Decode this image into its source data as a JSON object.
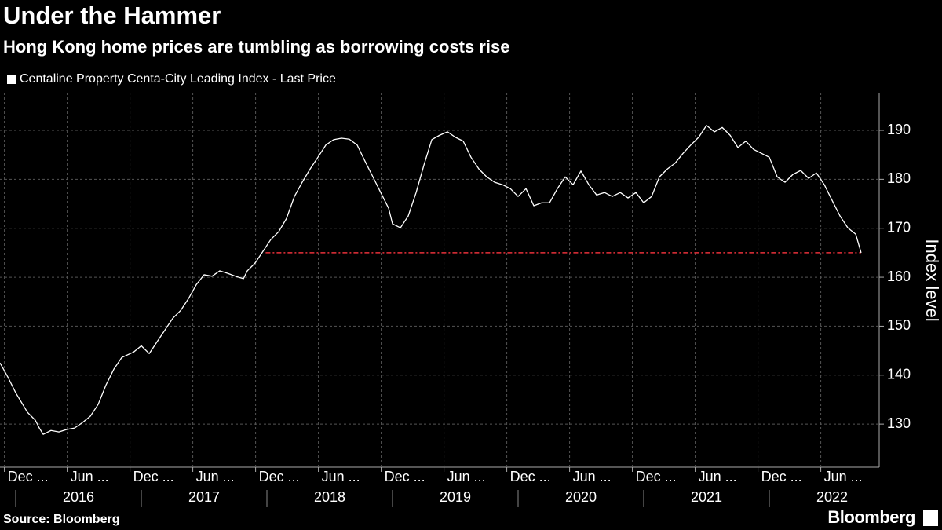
{
  "chart_data": {
    "type": "line",
    "title": "Under the Hammer",
    "subtitle": "Hong Kong home prices are tumbling as borrowing costs rise",
    "y_label": "Index level",
    "source": "Source: Bloomberg",
    "brand": "Bloomberg",
    "grid": true,
    "legend": "top-left",
    "xlim": [
      2015.875,
      2022.875
    ],
    "ylim": [
      121.2,
      197.7
    ],
    "yticks": [
      130,
      140,
      150,
      160,
      170,
      180,
      190
    ],
    "xticks": [
      {
        "value": 2015.91,
        "label": "Dec ..."
      },
      {
        "value": 2016.41,
        "label": "Jun ..."
      },
      {
        "value": 2016.91,
        "label": "Dec ..."
      },
      {
        "value": 2017.41,
        "label": "Jun ..."
      },
      {
        "value": 2017.91,
        "label": "Dec ..."
      },
      {
        "value": 2018.41,
        "label": "Jun ..."
      },
      {
        "value": 2018.91,
        "label": "Dec ..."
      },
      {
        "value": 2019.41,
        "label": "Jun ..."
      },
      {
        "value": 2019.91,
        "label": "Dec ..."
      },
      {
        "value": 2020.41,
        "label": "Jun ..."
      },
      {
        "value": 2020.91,
        "label": "Dec ..."
      },
      {
        "value": 2021.41,
        "label": "Jun ..."
      },
      {
        "value": 2021.91,
        "label": "Dec ..."
      },
      {
        "value": 2022.41,
        "label": "Jun ..."
      }
    ],
    "year_ticks": [
      2016,
      2017,
      2018,
      2019,
      2020,
      2021,
      2022
    ],
    "reference_line": {
      "y": 165,
      "x": [
        2017.99,
        2022.73
      ],
      "color": "#e8303a"
    },
    "series": [
      {
        "name": "Centaline Property Centa-City Leading Index - Last Price",
        "color": "#ffffff",
        "x": [
          2015.875,
          2015.938,
          2016.0,
          2016.094,
          2016.156,
          2016.188,
          2016.219,
          2016.281,
          2016.344,
          2016.406,
          2016.469,
          2016.531,
          2016.594,
          2016.656,
          2016.719,
          2016.781,
          2016.844,
          2016.938,
          2017.0,
          2017.063,
          2017.125,
          2017.188,
          2017.25,
          2017.313,
          2017.375,
          2017.438,
          2017.5,
          2017.563,
          2017.625,
          2017.688,
          2017.75,
          2017.813,
          2017.844,
          2017.906,
          2017.969,
          2018.031,
          2018.094,
          2018.156,
          2018.219,
          2018.281,
          2018.344,
          2018.406,
          2018.469,
          2018.531,
          2018.594,
          2018.656,
          2018.719,
          2018.781,
          2018.844,
          2018.906,
          2018.969,
          2019.0,
          2019.063,
          2019.125,
          2019.188,
          2019.25,
          2019.313,
          2019.375,
          2019.438,
          2019.5,
          2019.563,
          2019.625,
          2019.688,
          2019.75,
          2019.813,
          2019.875,
          2019.938,
          2020.0,
          2020.063,
          2020.125,
          2020.188,
          2020.25,
          2020.313,
          2020.375,
          2020.438,
          2020.5,
          2020.563,
          2020.625,
          2020.688,
          2020.75,
          2020.813,
          2020.875,
          2020.938,
          2021.0,
          2021.063,
          2021.125,
          2021.188,
          2021.25,
          2021.313,
          2021.375,
          2021.438,
          2021.5,
          2021.563,
          2021.625,
          2021.688,
          2021.75,
          2021.813,
          2021.875,
          2021.938,
          2022.0,
          2022.063,
          2022.125,
          2022.188,
          2022.25,
          2022.313,
          2022.375,
          2022.438,
          2022.5,
          2022.563,
          2022.625,
          2022.688,
          2022.731
        ],
        "values": [
          142.5,
          139.6,
          136.4,
          132.4,
          130.8,
          129.2,
          127.9,
          128.7,
          128.4,
          128.9,
          129.2,
          130.3,
          131.6,
          134.0,
          138.0,
          141.2,
          143.6,
          144.7,
          146.0,
          144.4,
          146.8,
          149.2,
          151.6,
          153.2,
          155.6,
          158.5,
          160.5,
          160.2,
          161.3,
          160.8,
          160.2,
          159.7,
          161.3,
          162.9,
          165.3,
          167.7,
          169.3,
          172.0,
          176.5,
          179.4,
          182.1,
          184.5,
          187.0,
          188.1,
          188.4,
          188.2,
          187.0,
          183.7,
          180.5,
          177.3,
          174.1,
          170.9,
          170.1,
          172.5,
          177.3,
          182.9,
          188.1,
          189.0,
          189.7,
          188.6,
          187.8,
          184.5,
          182.1,
          180.5,
          179.4,
          178.9,
          178.1,
          176.5,
          178.1,
          174.6,
          175.2,
          175.2,
          178.1,
          180.5,
          178.9,
          181.7,
          178.9,
          176.8,
          177.3,
          176.5,
          177.3,
          176.2,
          177.3,
          175.2,
          176.5,
          180.5,
          182.1,
          183.3,
          185.3,
          187.0,
          188.6,
          191.0,
          189.7,
          190.6,
          189.0,
          186.5,
          187.8,
          186.1,
          185.3,
          184.5,
          180.5,
          179.4,
          181.0,
          181.8,
          180.2,
          181.3,
          178.9,
          175.7,
          172.5,
          170.1,
          168.8,
          165.0
        ]
      }
    ]
  }
}
